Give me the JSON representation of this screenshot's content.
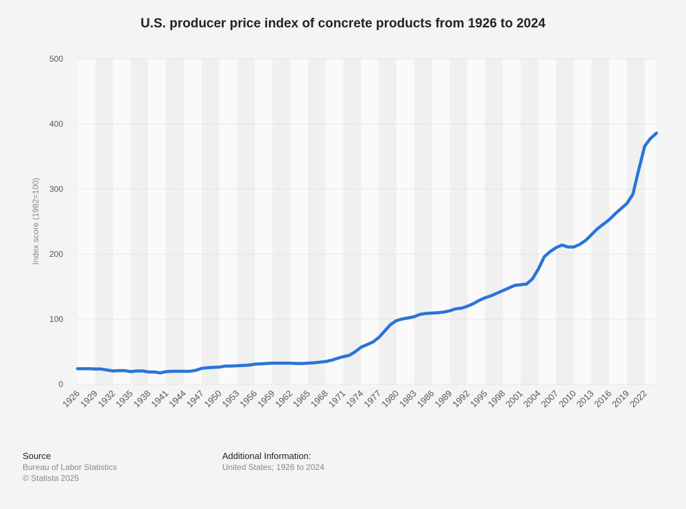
{
  "chart_data": {
    "type": "line",
    "title": "U.S. producer price index of concrete products from 1926 to 2024",
    "y_label": "Index score (1982=100)",
    "x": [
      1926,
      1927,
      1928,
      1929,
      1930,
      1931,
      1932,
      1933,
      1934,
      1935,
      1936,
      1937,
      1938,
      1939,
      1940,
      1941,
      1942,
      1943,
      1944,
      1945,
      1946,
      1947,
      1948,
      1949,
      1950,
      1951,
      1952,
      1953,
      1954,
      1955,
      1956,
      1957,
      1958,
      1959,
      1960,
      1961,
      1962,
      1963,
      1964,
      1965,
      1966,
      1967,
      1968,
      1969,
      1970,
      1971,
      1972,
      1973,
      1974,
      1975,
      1976,
      1977,
      1978,
      1979,
      1980,
      1981,
      1982,
      1983,
      1984,
      1985,
      1986,
      1987,
      1988,
      1989,
      1990,
      1991,
      1992,
      1993,
      1994,
      1995,
      1996,
      1997,
      1998,
      1999,
      2000,
      2001,
      2002,
      2003,
      2004,
      2005,
      2006,
      2007,
      2008,
      2009,
      2010,
      2011,
      2012,
      2013,
      2014,
      2015,
      2016,
      2017,
      2018,
      2019,
      2020,
      2021,
      2022,
      2023,
      2024
    ],
    "series": [
      {
        "name": "Index score",
        "color": "#2a74d6",
        "values": [
          24,
          24,
          24,
          23.5,
          23.5,
          22,
          20.5,
          21,
          21,
          19.5,
          20.5,
          20.5,
          19,
          19,
          17.5,
          19.5,
          20,
          20,
          20,
          20,
          21.5,
          24.5,
          25.5,
          26,
          26.5,
          28,
          28,
          28.5,
          29,
          29.5,
          31,
          31.5,
          32,
          32.5,
          32.5,
          32.5,
          32.5,
          32,
          32,
          32.5,
          33,
          34,
          35,
          37,
          40,
          42.5,
          44.5,
          50,
          57,
          61,
          65,
          72,
          82,
          92,
          98,
          100.5,
          102,
          104,
          107.5,
          109,
          109.5,
          110,
          111,
          113,
          116,
          117,
          120,
          124,
          129,
          133,
          136,
          140,
          144,
          148,
          152,
          153,
          154,
          162,
          177,
          196,
          204,
          210,
          214,
          211,
          211,
          215,
          221,
          230,
          239,
          246,
          253,
          262,
          270,
          278,
          292,
          330,
          366,
          378,
          386
        ]
      }
    ],
    "xlim": [
      1926,
      2024
    ],
    "xticks": [
      1926,
      1929,
      1932,
      1935,
      1938,
      1941,
      1944,
      1947,
      1950,
      1953,
      1956,
      1959,
      1962,
      1965,
      1968,
      1971,
      1974,
      1977,
      1980,
      1983,
      1986,
      1989,
      1992,
      1995,
      1998,
      2001,
      2004,
      2007,
      2010,
      2013,
      2016,
      2019,
      2022
    ],
    "ylim": [
      0,
      500
    ],
    "yticks": [
      0,
      100,
      200,
      300,
      400,
      500
    ],
    "grid": true
  },
  "footer": {
    "source_title": "Source",
    "source": "Bureau of Labor Statistics",
    "copyright": "© Statista 2025",
    "info_title": "Additional Information:",
    "info": "United States; 1926 to 2024"
  }
}
